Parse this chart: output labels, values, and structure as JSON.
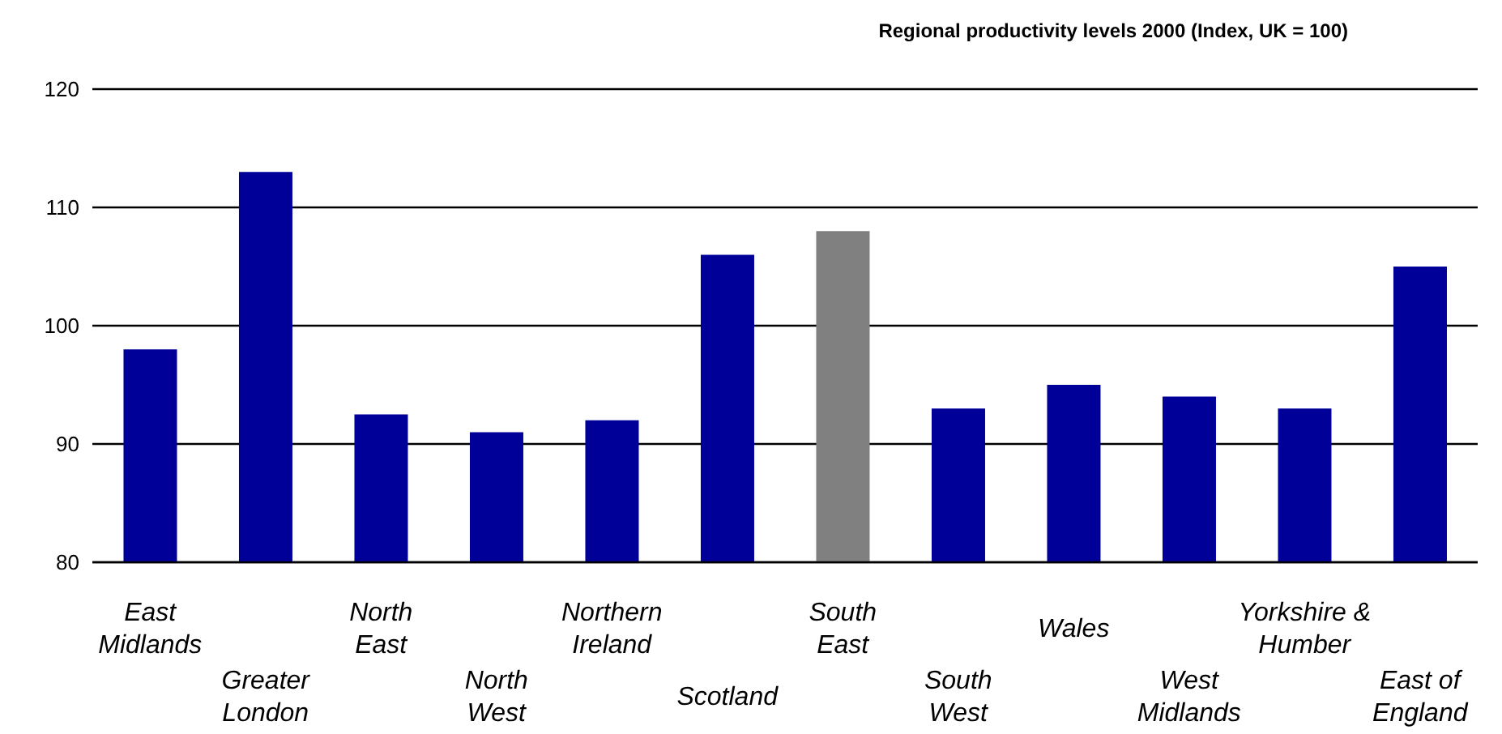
{
  "chart_data": {
    "type": "bar",
    "title": "Regional productivity levels 2000 (Index, UK = 100)",
    "categories": [
      "East Midlands",
      "Greater London",
      "North East",
      "North West",
      "Northern Ireland",
      "Scotland",
      "South East",
      "South West",
      "Wales",
      "West Midlands",
      "Yorkshire & Humber",
      "East of England"
    ],
    "values": [
      98,
      113,
      92.5,
      91,
      92,
      106,
      108,
      93,
      95,
      94,
      93,
      105
    ],
    "colors": [
      "#000099",
      "#000099",
      "#000099",
      "#000099",
      "#000099",
      "#000099",
      "#808080",
      "#000099",
      "#000099",
      "#000099",
      "#000099",
      "#000099"
    ],
    "ylim": [
      80,
      120
    ],
    "yticks": [
      80,
      90,
      100,
      110,
      120
    ],
    "grid": "y",
    "legend": false
  }
}
